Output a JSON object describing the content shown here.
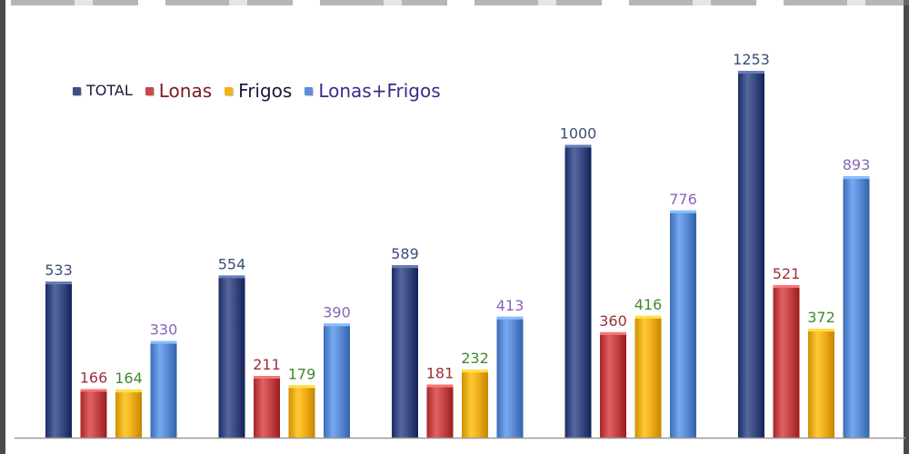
{
  "chart_data": {
    "type": "bar",
    "title": "",
    "xlabel": "",
    "ylabel": "",
    "categories": [
      "",
      "",
      "",
      "",
      ""
    ],
    "ylim": [
      0,
      1400
    ],
    "grid": false,
    "legend_position": "top-left",
    "series": [
      {
        "name": "TOTAL",
        "values": [
          533,
          554,
          589,
          1000,
          1253
        ],
        "color": "#3d4f86",
        "label_color": "#3b4f7a"
      },
      {
        "name": "Lonas",
        "values": [
          166,
          211,
          181,
          360,
          521
        ],
        "color": "#c9494a",
        "label_color": "#9c2f3a"
      },
      {
        "name": "Frigos",
        "values": [
          164,
          179,
          232,
          416,
          372
        ],
        "color": "#f2b21c",
        "label_color": "#3f8a2a"
      },
      {
        "name": "Lonas+Frigos",
        "values": [
          330,
          390,
          413,
          776,
          893
        ],
        "color": "#5e8fd8",
        "label_color": "#8a64b8"
      }
    ],
    "legend_text_colors": [
      "#1a1a3a",
      "#7a1a22",
      "#1a1a3a",
      "#3a2a8a"
    ]
  }
}
